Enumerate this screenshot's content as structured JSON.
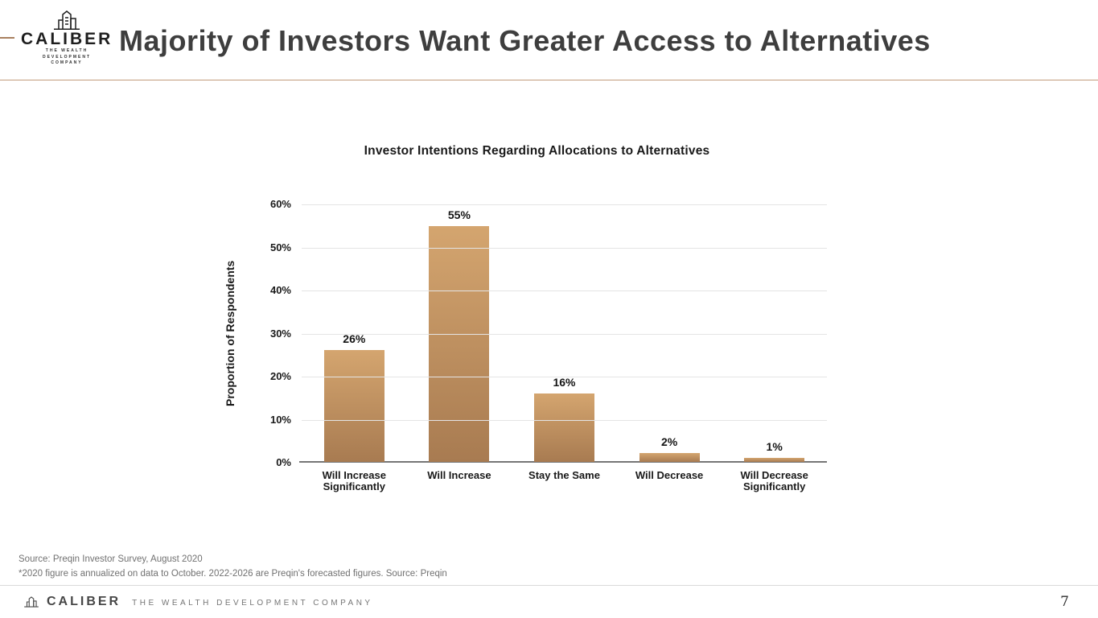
{
  "header": {
    "brand": "CALIBER",
    "tagline_line1": "THE WEALTH DEVELOPMENT",
    "tagline_line2": "COMPANY",
    "title": "Majority of Investors Want Greater Access to Alternatives"
  },
  "chart_data": {
    "type": "bar",
    "title": "Investor Intentions Regarding Allocations to Alternatives",
    "ylabel": "Proportion of Respondents",
    "xlabel": "",
    "categories": [
      "Will Increase Significantly",
      "Will Increase",
      "Stay the Same",
      "Will Decrease",
      "Will Decrease Significantly"
    ],
    "values": [
      26,
      55,
      16,
      2,
      1
    ],
    "value_labels": [
      "26%",
      "55%",
      "16%",
      "2%",
      "1%"
    ],
    "ylim": [
      0,
      60
    ],
    "ytick_labels": [
      "0%",
      "10%",
      "20%",
      "30%",
      "40%",
      "50%",
      "60%"
    ],
    "grid": true,
    "legend": "none",
    "bar_color_top": "#d4a56f",
    "bar_color_bottom": "#a87b51"
  },
  "source": {
    "line1": "Source: Preqin Investor Survey, August 2020",
    "line2": "*2020 figure is annualized on data to October. 2022-2026 are Preqin's forecasted figures. Source: Preqin"
  },
  "footer": {
    "brand": "CALIBER",
    "tagline": "THE WEALTH DEVELOPMENT COMPANY",
    "page_number": "7"
  },
  "colors": {
    "accent_dash": "#a9805f",
    "header_divider": "#c29c7c",
    "gridline": "#e4e4e4",
    "axis_line": "#767676"
  }
}
